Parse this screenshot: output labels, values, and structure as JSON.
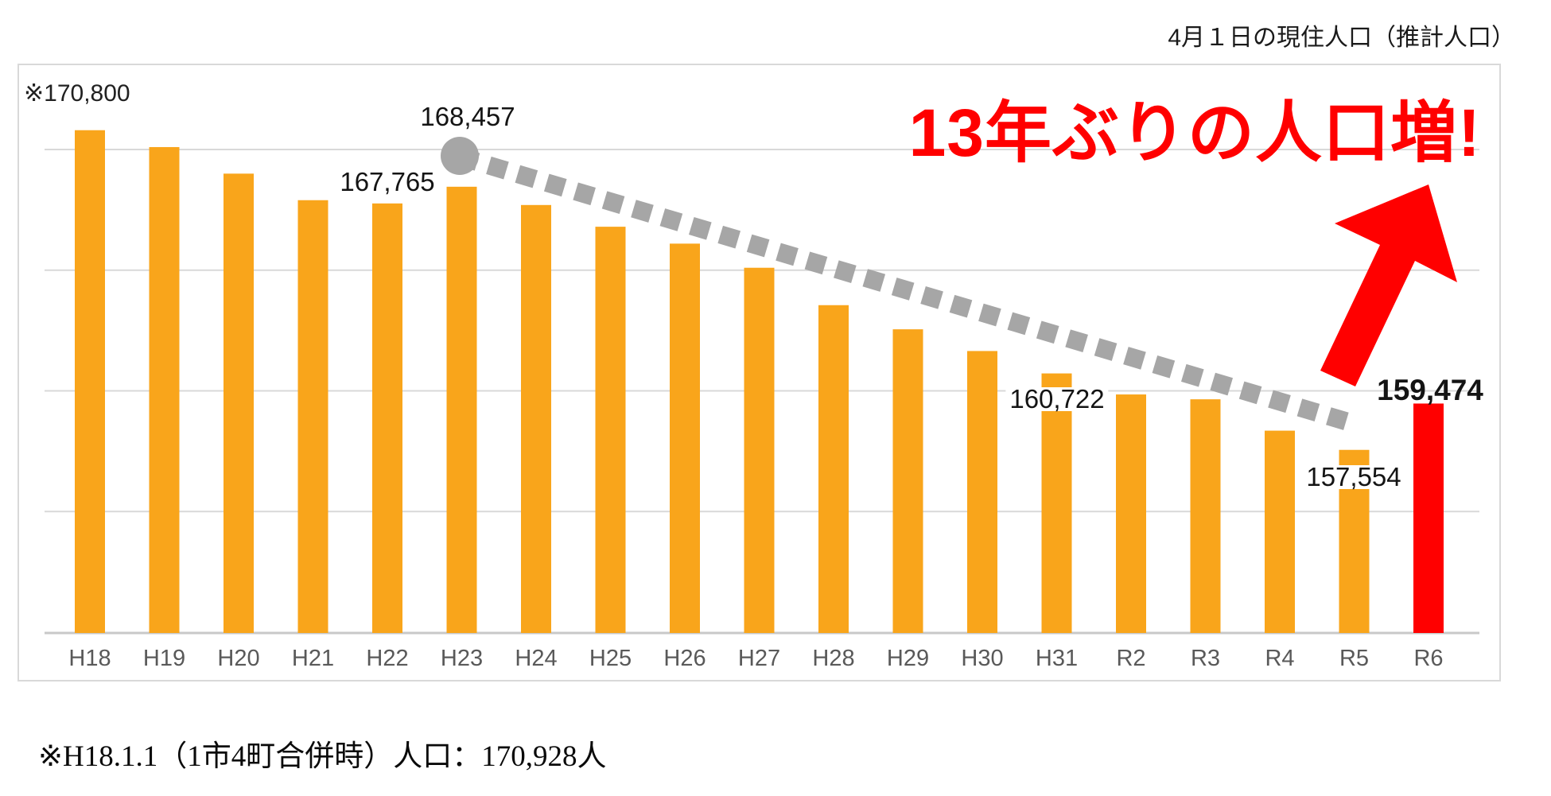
{
  "title": "4月１日の現住人口（推計人口）",
  "headline": "13年ぶりの人口増!",
  "footnote": "※H18.1.1（1市4町合併時）人口：170,928人",
  "colors": {
    "bar": "#F9A51B",
    "highlight": "#FF0000",
    "trend": "#A6A6A6",
    "gridline": "#D9D9D9",
    "axis_line": "#C8C8C8",
    "border": "#D9D9D9",
    "axis_label": "#595959",
    "headline_red": "#FF0000"
  },
  "chart_data": {
    "type": "bar",
    "title": "4月１日の現住人口（推計人口）",
    "categories": [
      "H18",
      "H19",
      "H20",
      "H21",
      "H22",
      "H23",
      "H24",
      "H25",
      "H26",
      "H27",
      "H28",
      "H29",
      "H30",
      "H31",
      "R2",
      "R3",
      "R4",
      "R5",
      "R6"
    ],
    "values": [
      170800,
      170100,
      169000,
      167900,
      167765,
      168457,
      167700,
      166800,
      166100,
      165100,
      163550,
      162550,
      161650,
      160722,
      159850,
      159650,
      158350,
      157554,
      159474
    ],
    "highlight_category": "R6",
    "ylim": [
      150000,
      172500
    ],
    "gridline_step": 5000,
    "grid": "horizontal-only",
    "legend": "none",
    "point_labels": [
      {
        "category": "H18",
        "text": "※170,800"
      },
      {
        "category": "H22",
        "text": "167,765"
      },
      {
        "category": "H23",
        "text": "168,457"
      },
      {
        "category": "H31",
        "text": "160,722"
      },
      {
        "category": "R5",
        "text": "157,554"
      },
      {
        "category": "R6",
        "text": "159,474"
      }
    ],
    "trend_line": {
      "from_category": "H23",
      "to_category": "R5",
      "style": "square-dashed",
      "color": "#A6A6A6",
      "start_marker": "circle"
    },
    "annotation_arrow": {
      "direction": "up-right",
      "color": "#FF0000"
    }
  }
}
